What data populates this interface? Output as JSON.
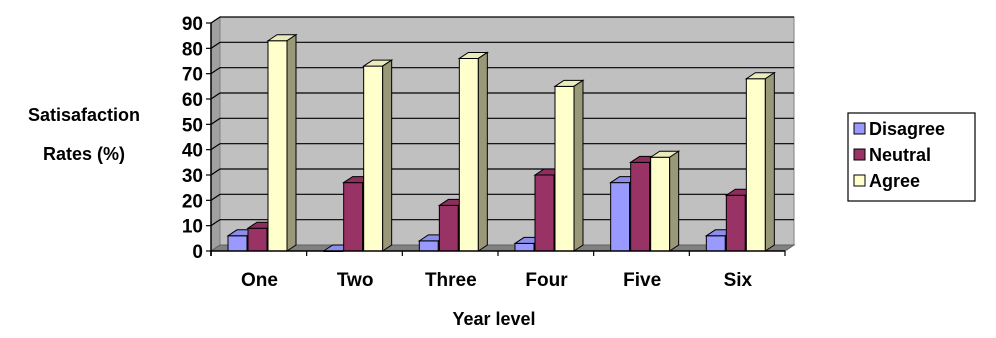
{
  "chart_data": {
    "type": "bar",
    "style": "3d-clustered-column",
    "title": "",
    "xlabel": "Year level",
    "ylabel_lines": [
      "Satisafaction",
      "Rates (%)"
    ],
    "ylim": [
      0,
      90
    ],
    "yticks": [
      0,
      10,
      20,
      30,
      40,
      50,
      60,
      70,
      80,
      90
    ],
    "categories": [
      "One",
      "Two",
      "Three",
      "Four",
      "Five",
      "Six"
    ],
    "series": [
      {
        "name": "Disagree",
        "color": "#9999ff",
        "values": [
          6,
          0,
          4,
          3,
          27,
          6
        ]
      },
      {
        "name": "Neutral",
        "color": "#993366",
        "values": [
          9,
          27,
          18,
          30,
          35,
          22
        ]
      },
      {
        "name": "Agree",
        "color": "#ffffcc",
        "values": [
          83,
          73,
          76,
          65,
          37,
          68
        ]
      }
    ],
    "grid": true,
    "plot_background": "#c0c0c0",
    "legend_position": "right"
  }
}
